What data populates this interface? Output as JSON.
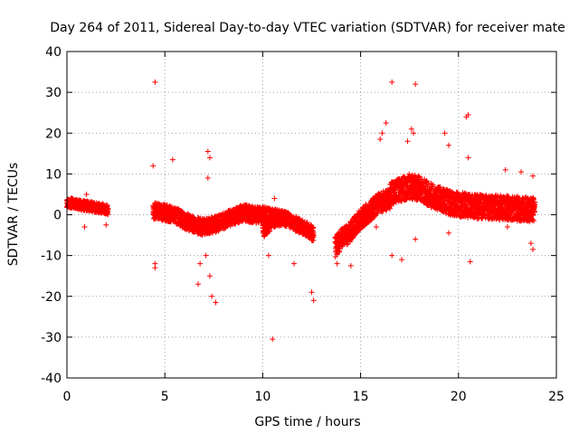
{
  "chart_data": {
    "type": "scatter",
    "title": "Day 264 of 2011, Sidereal Day-to-day VTEC variation (SDTVAR) for receiver mate",
    "xlabel": "GPS time / hours",
    "ylabel": "SDTVAR / TECUs",
    "xlim": [
      0,
      25
    ],
    "ylim": [
      -40,
      40
    ],
    "x_ticks": [
      0,
      5,
      10,
      15,
      20,
      25
    ],
    "x_tick_labels": [
      "0",
      "5",
      "10",
      "15",
      "20",
      "25"
    ],
    "y_ticks": [
      -40,
      -30,
      -20,
      -10,
      0,
      10,
      20,
      30,
      40
    ],
    "y_tick_labels": [
      "-40",
      "-30",
      "-20",
      "-10",
      "0",
      "10",
      "20",
      "30",
      "40"
    ],
    "grid": true,
    "marker": "+",
    "color": "#ff0000",
    "series": [
      {
        "name": "SDTVAR",
        "segments": [
          {
            "t": [
              0.0,
              0.3,
              0.6,
              0.9,
              1.2,
              1.5,
              1.8,
              2.1
            ],
            "v": [
              3.0,
              2.8,
              2.5,
              2.2,
              2.0,
              1.8,
              1.5,
              1.2
            ],
            "spread": 1.2
          },
          {
            "t": [
              4.4,
              5.0,
              5.5,
              6.0,
              6.5,
              7.0,
              7.5,
              8.0,
              8.5,
              9.0,
              9.5,
              10.0,
              10.5,
              11.0
            ],
            "v": [
              1.0,
              0.5,
              0.0,
              -1.5,
              -2.5,
              -3.0,
              -2.5,
              -1.5,
              -0.5,
              0.5,
              0.0,
              0.0,
              -0.5,
              -1.0
            ],
            "spread": 2.0
          },
          {
            "t": [
              10.0,
              10.4,
              10.8,
              11.2,
              11.6,
              12.0,
              12.4,
              12.6
            ],
            "v": [
              -4.0,
              -2.0,
              -0.5,
              -1.0,
              -2.0,
              -3.0,
              -4.0,
              -5.0
            ],
            "spread": 1.8
          },
          {
            "t": [
              13.7,
              14.0,
              14.5,
              15.0,
              15.5,
              16.0,
              16.5
            ],
            "v": [
              -8.0,
              -6.0,
              -4.0,
              -1.0,
              1.0,
              3.0,
              4.0
            ],
            "spread": 2.5
          },
          {
            "t": [
              16.5,
              17.0,
              17.5,
              18.0,
              18.5,
              19.0,
              19.5,
              20.0,
              21.0,
              22.0,
              23.0,
              23.9
            ],
            "v": [
              5.0,
              6.0,
              7.0,
              6.5,
              5.0,
              4.0,
              3.0,
              2.5,
              2.0,
              1.8,
              1.5,
              1.2
            ],
            "spread": 3.0
          }
        ],
        "outliers": [
          {
            "x": 4.5,
            "y": 32.5
          },
          {
            "x": 4.4,
            "y": 12.0
          },
          {
            "x": 4.5,
            "y": -13.0
          },
          {
            "x": 4.5,
            "y": -12.0
          },
          {
            "x": 5.4,
            "y": 13.5
          },
          {
            "x": 7.2,
            "y": 15.5
          },
          {
            "x": 7.3,
            "y": 14.0
          },
          {
            "x": 7.2,
            "y": 9.0
          },
          {
            "x": 7.3,
            "y": -15.0
          },
          {
            "x": 7.1,
            "y": -10.0
          },
          {
            "x": 6.8,
            "y": -12.0
          },
          {
            "x": 6.7,
            "y": -17.0
          },
          {
            "x": 7.4,
            "y": -20.0
          },
          {
            "x": 7.6,
            "y": -21.5
          },
          {
            "x": 10.6,
            "y": 4.0
          },
          {
            "x": 10.3,
            "y": -10.0
          },
          {
            "x": 10.5,
            "y": -30.5
          },
          {
            "x": 11.6,
            "y": -12.0
          },
          {
            "x": 12.5,
            "y": -19.0
          },
          {
            "x": 12.6,
            "y": -21.0
          },
          {
            "x": 13.8,
            "y": -12.0
          },
          {
            "x": 14.5,
            "y": -12.5
          },
          {
            "x": 16.0,
            "y": 18.5
          },
          {
            "x": 16.1,
            "y": 20.0
          },
          {
            "x": 16.3,
            "y": 22.5
          },
          {
            "x": 16.6,
            "y": 32.5
          },
          {
            "x": 16.6,
            "y": -10.0
          },
          {
            "x": 17.1,
            "y": -11.0
          },
          {
            "x": 17.4,
            "y": 18.0
          },
          {
            "x": 17.7,
            "y": 20.0
          },
          {
            "x": 17.6,
            "y": 21.0
          },
          {
            "x": 17.8,
            "y": 32.0
          },
          {
            "x": 17.8,
            "y": -6.0
          },
          {
            "x": 19.5,
            "y": 17.0
          },
          {
            "x": 19.3,
            "y": 20.0
          },
          {
            "x": 20.4,
            "y": 24.0
          },
          {
            "x": 20.5,
            "y": 24.5
          },
          {
            "x": 20.5,
            "y": 14.0
          },
          {
            "x": 20.6,
            "y": -11.5
          },
          {
            "x": 22.4,
            "y": 11.0
          },
          {
            "x": 22.5,
            "y": -3.0
          },
          {
            "x": 23.2,
            "y": 10.5
          },
          {
            "x": 23.8,
            "y": 9.5
          },
          {
            "x": 23.7,
            "y": -7.0
          },
          {
            "x": 23.8,
            "y": -8.5
          },
          {
            "x": 19.5,
            "y": -4.5
          },
          {
            "x": 2.0,
            "y": -2.5
          },
          {
            "x": 0.9,
            "y": -3.0
          },
          {
            "x": 1.0,
            "y": 5.0
          },
          {
            "x": 8.5,
            "y": 1.0
          },
          {
            "x": 15.8,
            "y": -3.0
          }
        ]
      }
    ]
  }
}
